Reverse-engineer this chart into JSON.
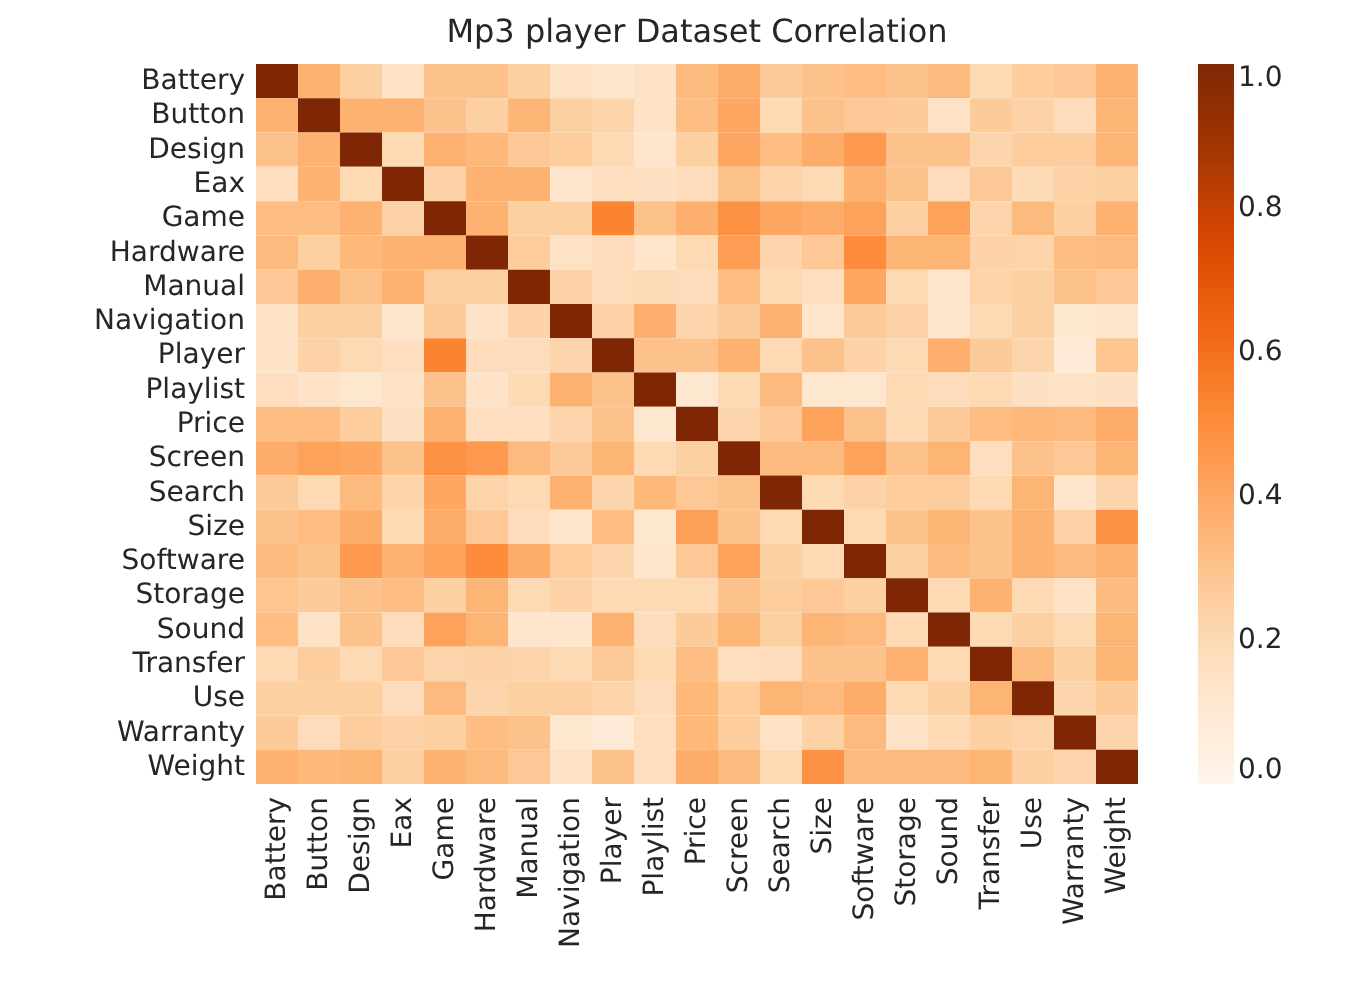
{
  "chart_data": {
    "type": "heatmap",
    "title": "Mp3 player Dataset Correlation",
    "categories": [
      "Battery",
      "Button",
      "Design",
      "Eax",
      "Game",
      "Hardware",
      "Manual",
      "Navigation",
      "Player",
      "Playlist",
      "Price",
      "Screen",
      "Search",
      "Size",
      "Software",
      "Storage",
      "Sound",
      "Transfer",
      "Use",
      "Warranty",
      "Weight"
    ],
    "y_categories": [
      "Battery",
      "Button",
      "Design",
      "Eax",
      "Game",
      "Hardware",
      "Manual",
      "Navigation",
      "Player",
      "Playlist",
      "Price",
      "Screen",
      "Search",
      "Size",
      "Software",
      "Storage",
      "Sound",
      "Transfer",
      "Use",
      "Warranty",
      "Weight"
    ],
    "cells": [
      [
        1,
        0.36,
        0.25,
        0.15,
        0.3,
        0.3,
        0.25,
        0.15,
        0.13,
        0.15,
        0.33,
        0.38,
        0.27,
        0.3,
        0.32,
        0.3,
        0.33,
        0.2,
        0.26,
        0.28,
        0.36
      ],
      [
        0.36,
        1,
        0.36,
        0.36,
        0.3,
        0.25,
        0.35,
        0.25,
        0.23,
        0.15,
        0.32,
        0.4,
        0.2,
        0.3,
        0.28,
        0.27,
        0.15,
        0.27,
        0.24,
        0.18,
        0.35
      ],
      [
        0.3,
        0.36,
        1,
        0.2,
        0.36,
        0.34,
        0.28,
        0.26,
        0.2,
        0.13,
        0.25,
        0.4,
        0.32,
        0.38,
        0.45,
        0.3,
        0.3,
        0.22,
        0.26,
        0.26,
        0.35
      ],
      [
        0.17,
        0.36,
        0.2,
        1,
        0.24,
        0.36,
        0.36,
        0.13,
        0.17,
        0.16,
        0.18,
        0.3,
        0.23,
        0.2,
        0.36,
        0.3,
        0.18,
        0.28,
        0.19,
        0.24,
        0.25
      ],
      [
        0.32,
        0.32,
        0.36,
        0.24,
        1,
        0.36,
        0.25,
        0.25,
        0.53,
        0.3,
        0.37,
        0.48,
        0.4,
        0.38,
        0.42,
        0.25,
        0.42,
        0.22,
        0.33,
        0.25,
        0.36
      ],
      [
        0.33,
        0.25,
        0.34,
        0.36,
        0.36,
        1,
        0.26,
        0.15,
        0.18,
        0.13,
        0.2,
        0.44,
        0.22,
        0.28,
        0.5,
        0.35,
        0.35,
        0.24,
        0.23,
        0.32,
        0.33
      ],
      [
        0.28,
        0.37,
        0.3,
        0.36,
        0.25,
        0.25,
        1,
        0.24,
        0.18,
        0.19,
        0.18,
        0.32,
        0.2,
        0.17,
        0.4,
        0.2,
        0.13,
        0.23,
        0.25,
        0.3,
        0.28
      ],
      [
        0.15,
        0.25,
        0.25,
        0.13,
        0.27,
        0.14,
        0.24,
        1,
        0.24,
        0.37,
        0.22,
        0.27,
        0.36,
        0.13,
        0.27,
        0.24,
        0.13,
        0.2,
        0.25,
        0.12,
        0.13
      ],
      [
        0.15,
        0.24,
        0.2,
        0.17,
        0.53,
        0.18,
        0.18,
        0.22,
        1,
        0.3,
        0.3,
        0.36,
        0.2,
        0.3,
        0.24,
        0.2,
        0.37,
        0.27,
        0.22,
        0.09,
        0.29
      ],
      [
        0.17,
        0.14,
        0.12,
        0.15,
        0.3,
        0.14,
        0.2,
        0.36,
        0.3,
        1,
        0.12,
        0.2,
        0.33,
        0.12,
        0.12,
        0.2,
        0.18,
        0.2,
        0.16,
        0.15,
        0.16
      ],
      [
        0.32,
        0.32,
        0.26,
        0.16,
        0.36,
        0.17,
        0.17,
        0.22,
        0.3,
        0.12,
        1,
        0.22,
        0.28,
        0.42,
        0.3,
        0.2,
        0.27,
        0.32,
        0.34,
        0.33,
        0.38
      ],
      [
        0.38,
        0.42,
        0.4,
        0.3,
        0.48,
        0.45,
        0.33,
        0.27,
        0.35,
        0.2,
        0.25,
        1,
        0.33,
        0.33,
        0.42,
        0.3,
        0.35,
        0.17,
        0.3,
        0.28,
        0.35
      ],
      [
        0.27,
        0.2,
        0.33,
        0.23,
        0.4,
        0.23,
        0.2,
        0.36,
        0.22,
        0.34,
        0.28,
        0.3,
        1,
        0.2,
        0.24,
        0.26,
        0.26,
        0.2,
        0.35,
        0.13,
        0.22
      ],
      [
        0.3,
        0.32,
        0.38,
        0.2,
        0.38,
        0.28,
        0.18,
        0.13,
        0.32,
        0.12,
        0.43,
        0.3,
        0.2,
        1,
        0.2,
        0.3,
        0.35,
        0.3,
        0.36,
        0.24,
        0.48
      ],
      [
        0.33,
        0.3,
        0.45,
        0.36,
        0.42,
        0.5,
        0.38,
        0.26,
        0.22,
        0.13,
        0.28,
        0.42,
        0.25,
        0.2,
        1,
        0.25,
        0.33,
        0.3,
        0.36,
        0.33,
        0.36
      ],
      [
        0.29,
        0.27,
        0.3,
        0.32,
        0.25,
        0.35,
        0.2,
        0.24,
        0.2,
        0.2,
        0.2,
        0.3,
        0.26,
        0.28,
        0.25,
        1,
        0.2,
        0.36,
        0.2,
        0.15,
        0.33
      ],
      [
        0.32,
        0.15,
        0.3,
        0.18,
        0.42,
        0.35,
        0.13,
        0.13,
        0.36,
        0.18,
        0.27,
        0.35,
        0.25,
        0.35,
        0.33,
        0.2,
        1,
        0.2,
        0.25,
        0.2,
        0.35
      ],
      [
        0.2,
        0.26,
        0.2,
        0.28,
        0.22,
        0.24,
        0.23,
        0.2,
        0.27,
        0.2,
        0.32,
        0.17,
        0.18,
        0.3,
        0.3,
        0.36,
        0.2,
        1,
        0.33,
        0.25,
        0.35
      ],
      [
        0.25,
        0.25,
        0.25,
        0.18,
        0.33,
        0.22,
        0.25,
        0.25,
        0.23,
        0.18,
        0.34,
        0.26,
        0.35,
        0.33,
        0.38,
        0.2,
        0.25,
        0.35,
        1,
        0.22,
        0.27
      ],
      [
        0.27,
        0.18,
        0.26,
        0.24,
        0.25,
        0.32,
        0.3,
        0.12,
        0.09,
        0.17,
        0.34,
        0.26,
        0.15,
        0.24,
        0.33,
        0.14,
        0.2,
        0.25,
        0.23,
        1,
        0.22
      ],
      [
        0.36,
        0.34,
        0.35,
        0.25,
        0.36,
        0.33,
        0.28,
        0.15,
        0.3,
        0.17,
        0.38,
        0.33,
        0.2,
        0.48,
        0.33,
        0.33,
        0.33,
        0.35,
        0.25,
        0.22,
        1
      ]
    ],
    "clim": [
      0,
      1
    ],
    "cticks": [
      {
        "value": 0,
        "label": "0.0"
      },
      {
        "value": 0.2,
        "label": "0.2"
      },
      {
        "value": 0.4,
        "label": "0.4"
      },
      {
        "value": 0.6,
        "label": "0.6"
      },
      {
        "value": 0.8,
        "label": "0.8"
      },
      {
        "value": 1,
        "label": "1.0"
      }
    ]
  }
}
